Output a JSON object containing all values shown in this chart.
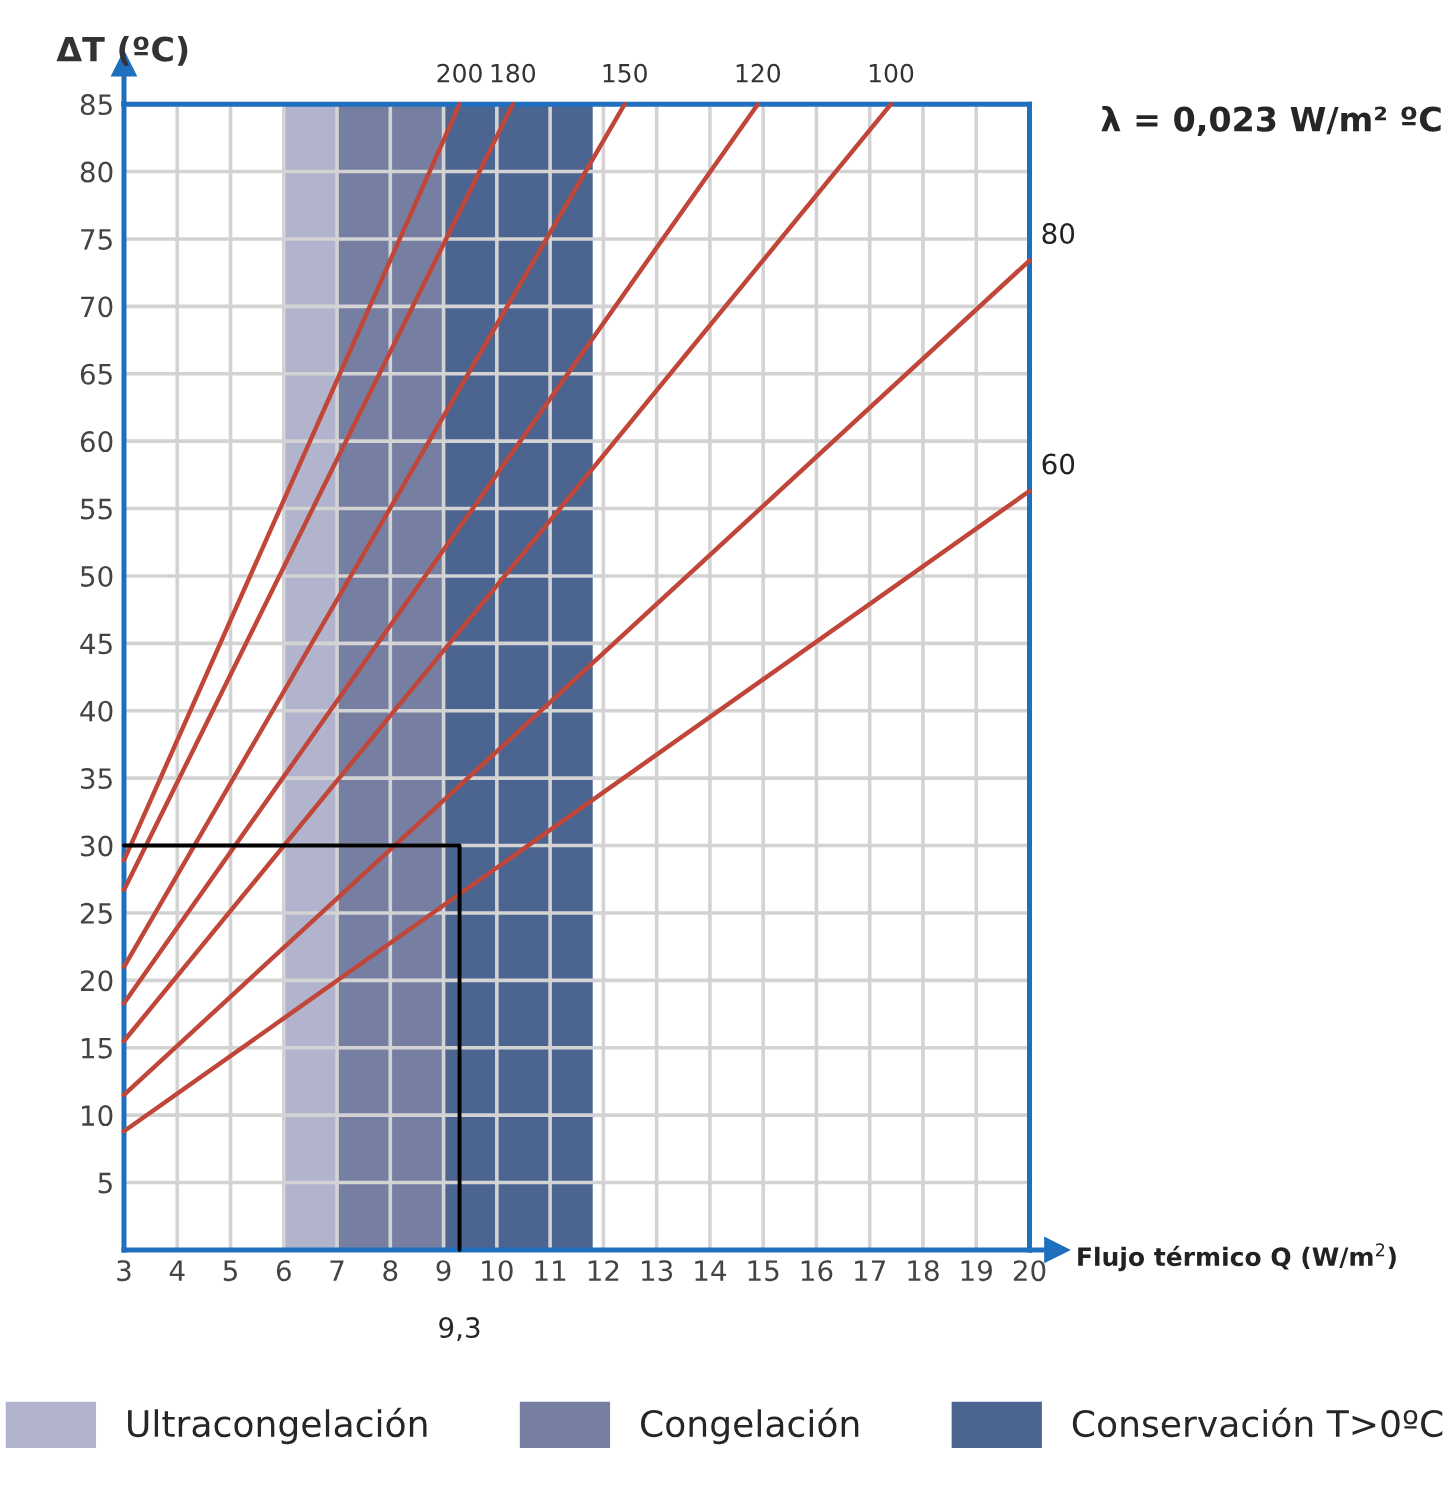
{
  "chart_data": {
    "type": "line",
    "xlabel": "Flujo térmico Q (W/m$^{2}$)",
    "ylabel": "ΔT (ºC)",
    "annotations": [
      "λ = 0,023 W/m² ºC",
      {
        "text": "9,3",
        "x": 9.3,
        "y": 0
      }
    ],
    "xlim": [
      3,
      20
    ],
    "ylim": [
      0,
      85
    ],
    "xticks": [
      3,
      4,
      5,
      6,
      7,
      8,
      9,
      10,
      11,
      12,
      13,
      14,
      15,
      16,
      17,
      18,
      19,
      20
    ],
    "yticks": [
      5,
      10,
      15,
      20,
      25,
      30,
      35,
      40,
      45,
      50,
      55,
      60,
      65,
      70,
      75,
      80,
      85
    ],
    "grid": true,
    "legend": "bottom",
    "bands": [
      {
        "axis": "x",
        "from": 6,
        "to": 7,
        "label": "Ultracongelación",
        "color": "#b1b4cc"
      },
      {
        "axis": "x",
        "from": 7,
        "to": 9,
        "label": "Congelación",
        "color": "#767fa2"
      },
      {
        "axis": "x",
        "from": 9,
        "to": 11.8,
        "label": "Conservación T>0ºC",
        "color": "#4b6590"
      }
    ],
    "series": [
      {
        "name": "200",
        "color": "#c0463a",
        "x": [
          3,
          9.3
        ],
        "values": [
          28.9,
          85
        ]
      },
      {
        "name": "180",
        "color": "#c0463a",
        "x": [
          3,
          10.3
        ],
        "values": [
          26.7,
          85
        ]
      },
      {
        "name": "150",
        "color": "#c0463a",
        "x": [
          3,
          12.4
        ],
        "values": [
          21.0,
          85
        ]
      },
      {
        "name": "120",
        "color": "#c0463a",
        "x": [
          3,
          14.9
        ],
        "values": [
          18.3,
          85
        ]
      },
      {
        "name": "100",
        "color": "#c0463a",
        "x": [
          3,
          17.4
        ],
        "values": [
          15.5,
          85
        ]
      },
      {
        "name": "80",
        "color": "#c0463a",
        "x": [
          3,
          20
        ],
        "values": [
          11.5,
          73.4
        ]
      },
      {
        "name": "60",
        "color": "#c0463a",
        "x": [
          3,
          20
        ],
        "values": [
          8.8,
          56.3
        ]
      },
      {
        "color": "#000000",
        "x": [
          3,
          9.3,
          9.3
        ],
        "values": [
          30,
          30,
          0
        ]
      }
    ]
  }
}
